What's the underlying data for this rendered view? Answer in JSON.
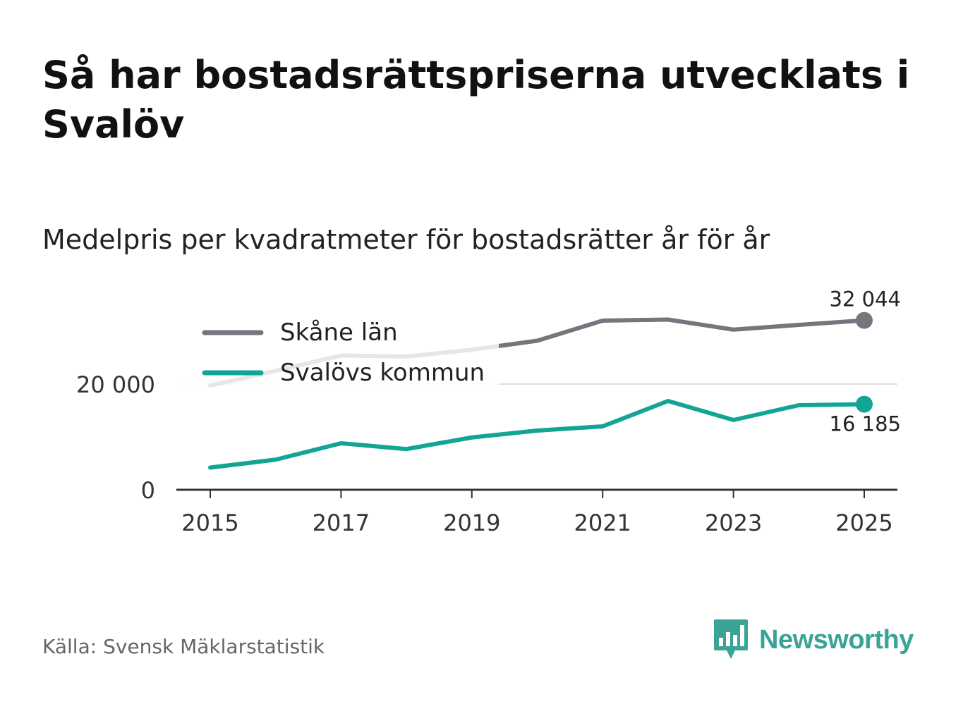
{
  "title": "Så har bostadsrättspriserna utvecklats i Svalöv",
  "subtitle": "Medelpris per kvadratmeter för bostadsrätter år för år",
  "source": "Källa: Svensk Mäklarstatistik",
  "brand": {
    "name": "Newsworthy",
    "logo_icon": "newsworthy-logo-icon",
    "color": "#3aa396"
  },
  "chart_data": {
    "type": "line",
    "title": "Medelpris per kvadratmeter för bostadsrätter år för år",
    "x": [
      2015,
      2016,
      2017,
      2018,
      2019,
      2020,
      2021,
      2022,
      2023,
      2024,
      2025
    ],
    "x_ticks": [
      "2015",
      "2017",
      "2019",
      "2021",
      "2023",
      "2025"
    ],
    "y_ticks": [
      "0",
      "20 000"
    ],
    "ylim": [
      0,
      34000
    ],
    "grid": "horizontal",
    "legend_position": "top-left",
    "series": [
      {
        "name": "Skåne län",
        "color": "#76757d",
        "values": [
          19700,
          22500,
          25400,
          25200,
          26500,
          28200,
          32000,
          32200,
          30300,
          31200,
          32044
        ],
        "end_label": "32 044"
      },
      {
        "name": "Svalövs kommun",
        "color": "#12a596",
        "values": [
          4200,
          5700,
          8800,
          7700,
          9900,
          11200,
          12000,
          16800,
          13200,
          16000,
          16185
        ],
        "end_label": "16 185"
      }
    ]
  }
}
